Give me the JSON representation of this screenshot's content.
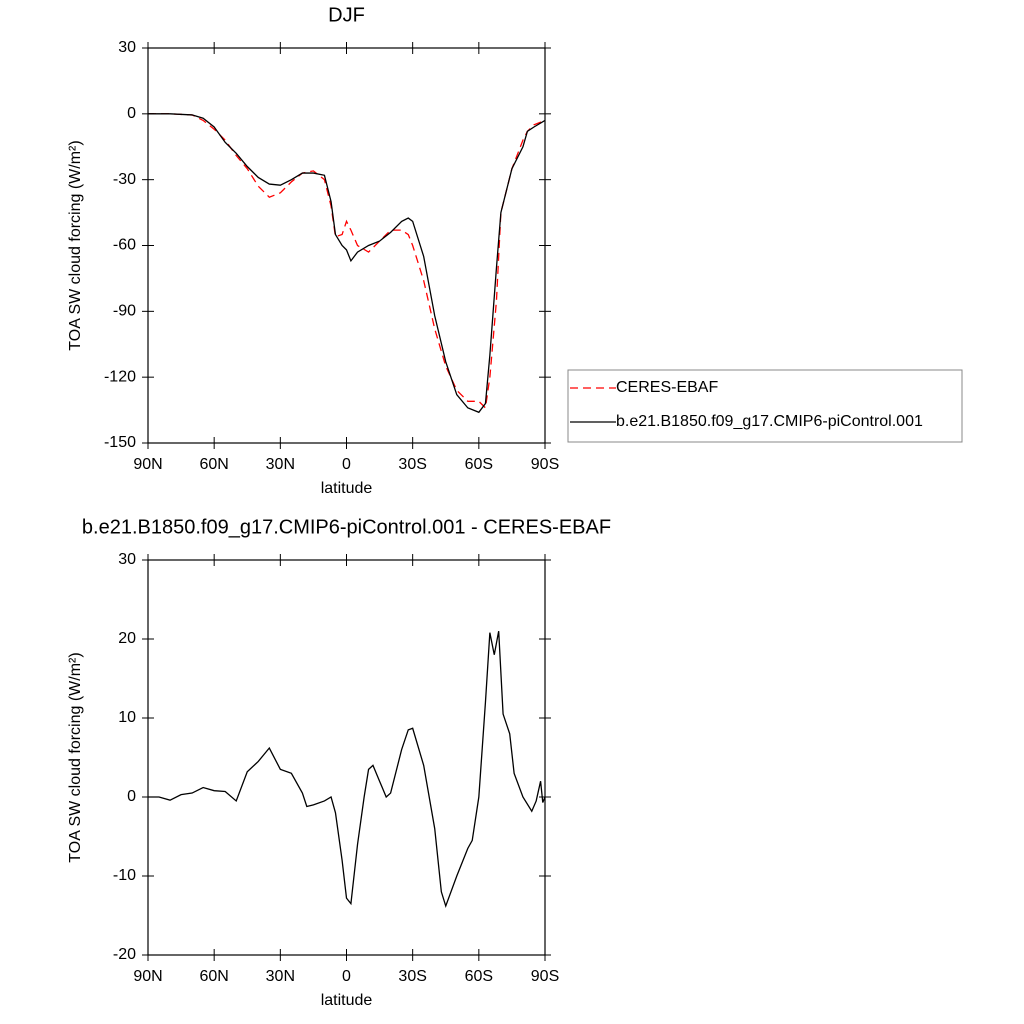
{
  "chart_data": [
    {
      "type": "line",
      "title": "DJF",
      "x_label": "latitude",
      "y_label": "TOA SW cloud forcing (W/m²)",
      "xlim": [
        90,
        -90
      ],
      "xticks": [
        {
          "value": 90,
          "label": "90N"
        },
        {
          "value": 60,
          "label": "60N"
        },
        {
          "value": 30,
          "label": "30N"
        },
        0,
        {
          "value": -30,
          "label": "30S"
        },
        {
          "value": -60,
          "label": "60S"
        },
        {
          "value": -90,
          "label": "90S"
        }
      ],
      "ylim": [
        -150,
        30
      ],
      "yticks": [
        -150,
        -120,
        -90,
        -60,
        -30,
        0,
        30
      ],
      "legend": "right",
      "x": [
        90,
        80,
        70,
        65,
        60,
        55,
        50,
        45,
        40,
        35,
        30,
        25,
        20,
        15,
        10,
        7,
        5,
        2,
        0,
        -2,
        -5,
        -10,
        -15,
        -20,
        -25,
        -28,
        -30,
        -35,
        -40,
        -45,
        -50,
        -55,
        -60,
        -63,
        -65,
        -68,
        -70,
        -75,
        -80,
        -82,
        -85,
        -90
      ],
      "series": [
        {
          "name": "CERES-EBAF",
          "color": "#ff0000",
          "dashed": true,
          "values": [
            0,
            0,
            -0.5,
            -3,
            -7,
            -12,
            -19,
            -25,
            -33,
            -38,
            -36,
            -31,
            -27,
            -26,
            -30,
            -42,
            -56,
            -55,
            -49,
            -53,
            -60,
            -63,
            -58,
            -53,
            -53,
            -55,
            -60,
            -76,
            -98,
            -115,
            -126,
            -131,
            -131,
            -134,
            -120,
            -85,
            -45,
            -25,
            -12,
            -8,
            -5,
            -3
          ]
        },
        {
          "name": "b.e21.B1850.f09_g17.CMIP6-piControl.001",
          "color": "#000000",
          "dashed": false,
          "values": [
            0,
            0,
            -0.5,
            -2,
            -6,
            -13,
            -18,
            -24,
            -29,
            -32,
            -32.5,
            -30,
            -27,
            -27,
            -28,
            -40,
            -55,
            -60,
            -62,
            -67,
            -63,
            -60,
            -58,
            -54,
            -49,
            -47.5,
            -49,
            -65,
            -92,
            -113,
            -128,
            -134,
            -136,
            -132,
            -110,
            -70,
            -45,
            -25,
            -15,
            -8,
            -6,
            -3
          ]
        }
      ]
    },
    {
      "type": "line",
      "title": "b.e21.B1850.f09_g17.CMIP6-piControl.001 - CERES-EBAF",
      "x_label": "latitude",
      "y_label": "TOA SW cloud forcing (W/m²)",
      "xlim": [
        90,
        -90
      ],
      "xticks": [
        {
          "value": 90,
          "label": "90N"
        },
        {
          "value": 60,
          "label": "60N"
        },
        {
          "value": 30,
          "label": "30N"
        },
        0,
        {
          "value": -30,
          "label": "30S"
        },
        {
          "value": -60,
          "label": "60S"
        },
        {
          "value": -90,
          "label": "90S"
        }
      ],
      "ylim": [
        -20,
        30
      ],
      "yticks": [
        -20,
        -10,
        0,
        10,
        20,
        30
      ],
      "x": [
        90,
        85,
        80,
        75,
        70,
        65,
        60,
        55,
        50,
        45,
        40,
        35,
        30,
        25,
        20,
        18,
        15,
        10,
        7,
        5,
        2,
        0,
        -2,
        -5,
        -8,
        -10,
        -12,
        -15,
        -18,
        -20,
        -25,
        -28,
        -30,
        -35,
        -40,
        -43,
        -45,
        -50,
        -55,
        -57,
        -60,
        -63,
        -65,
        -67,
        -69,
        -71,
        -74,
        -76,
        -80,
        -84,
        -86,
        -88,
        -89,
        -90
      ],
      "series": [
        {
          "name": "b.e21.B1850.f09_g17.CMIP6-piControl.001 - CERES-EBAF",
          "color": "#000000",
          "dashed": false,
          "values": [
            0,
            0,
            -0.4,
            0.3,
            0.5,
            1.2,
            0.8,
            0.7,
            -0.5,
            3.2,
            4.5,
            6.2,
            3.5,
            3,
            0.5,
            -1.2,
            -1,
            -0.5,
            0,
            -2,
            -8,
            -12.8,
            -13.5,
            -6,
            0,
            3.5,
            4,
            2,
            0,
            0.5,
            6,
            8.5,
            8.7,
            4,
            -4,
            -12,
            -13.8,
            -10,
            -6.5,
            -5.5,
            0,
            12,
            20.8,
            18,
            21,
            10.5,
            8,
            3,
            0,
            -1.8,
            -0.5,
            2,
            -0.7,
            0
          ]
        }
      ]
    }
  ]
}
